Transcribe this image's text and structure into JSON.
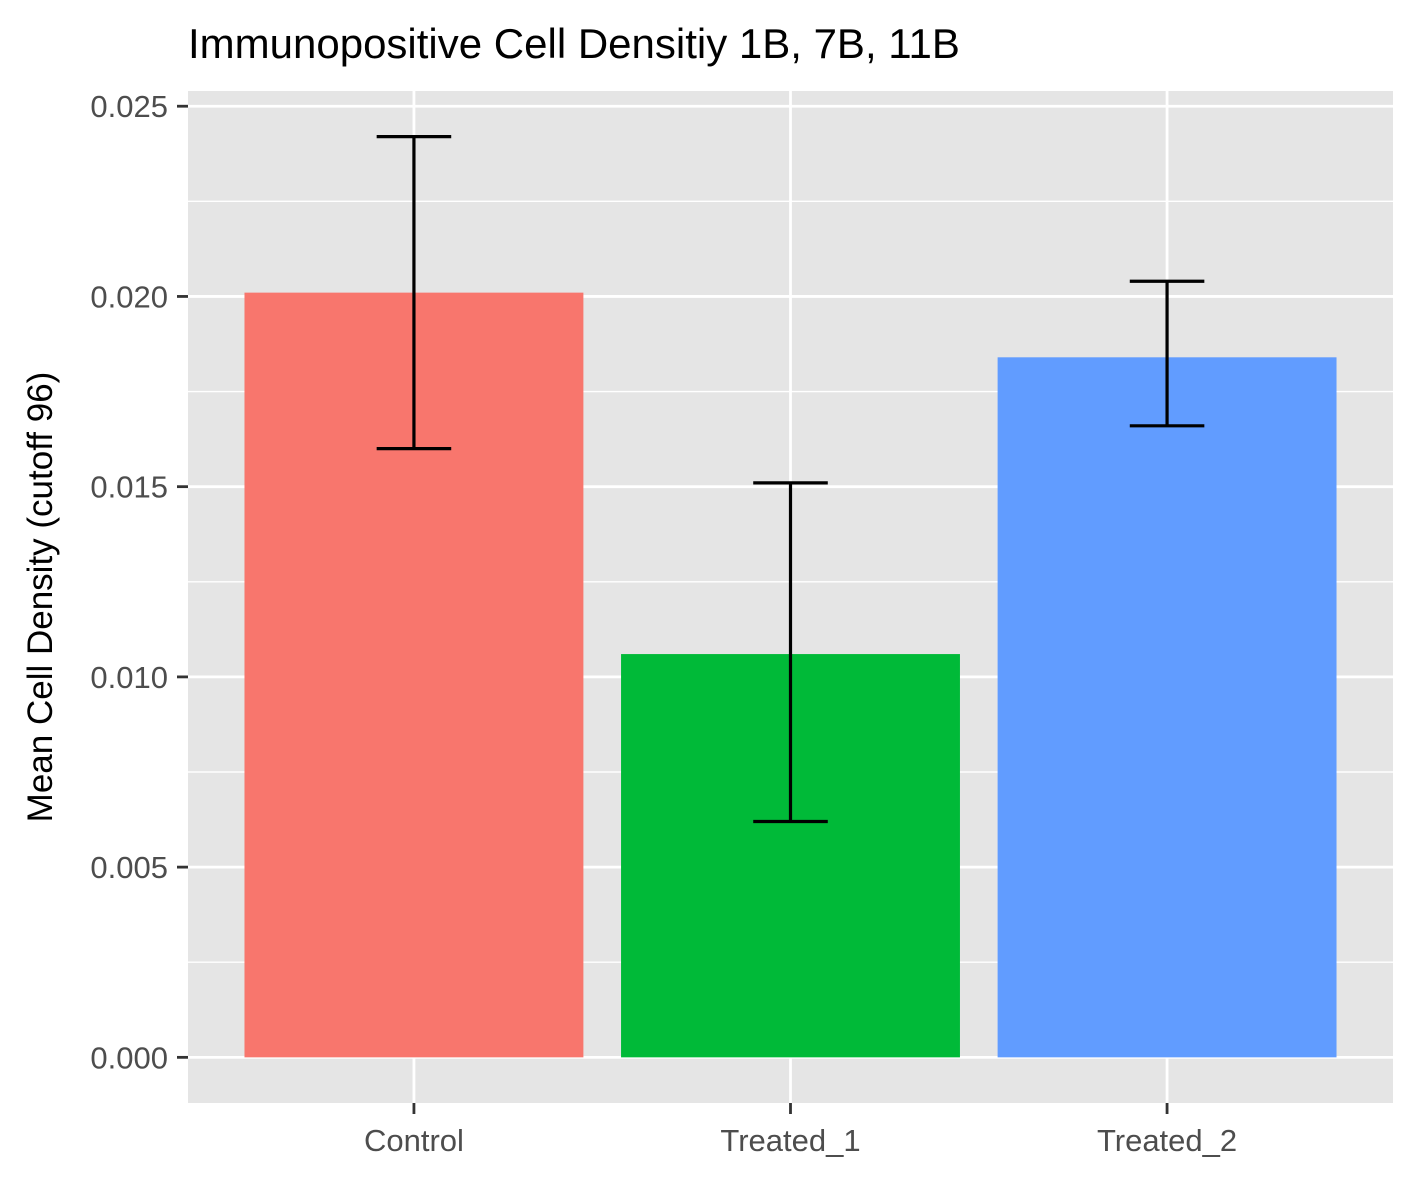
{
  "chart_data": {
    "type": "bar",
    "title": "Immunopositive Cell Densitiy 1B, 7B, 11B",
    "xlabel": "",
    "ylabel": "Mean Cell Density (cutoff 96)",
    "categories": [
      "Control",
      "Treated_1",
      "Treated_2"
    ],
    "values": [
      0.0201,
      0.0106,
      0.0184
    ],
    "error_low": [
      0.016,
      0.0062,
      0.0166
    ],
    "error_high": [
      0.0242,
      0.0151,
      0.0204
    ],
    "colors": [
      "#F8766D",
      "#00BA38",
      "#619CFF"
    ],
    "ylim": [
      -0.0012,
      0.0254
    ],
    "yticks": [
      0.0,
      0.005,
      0.01,
      0.015,
      0.02,
      0.025
    ],
    "ytick_labels": [
      "0.000",
      "0.005",
      "0.010",
      "0.015",
      "0.020",
      "0.025"
    ],
    "grid": true,
    "legend": "none",
    "panel_background": "#E5E5E5",
    "grid_color": "#FFFFFF",
    "errorbar_color": "#000000"
  }
}
